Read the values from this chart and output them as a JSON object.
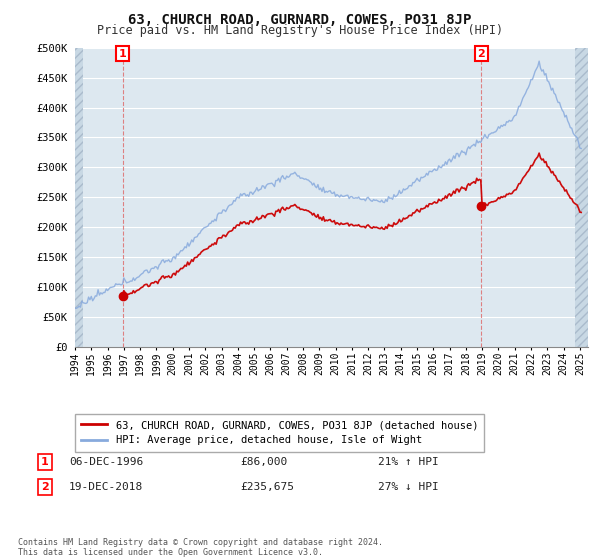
{
  "title": "63, CHURCH ROAD, GURNARD, COWES, PO31 8JP",
  "subtitle": "Price paid vs. HM Land Registry's House Price Index (HPI)",
  "ylim": [
    0,
    500000
  ],
  "yticks": [
    0,
    50000,
    100000,
    150000,
    200000,
    250000,
    300000,
    350000,
    400000,
    450000,
    500000
  ],
  "ytick_labels": [
    "£0",
    "£50K",
    "£100K",
    "£150K",
    "£200K",
    "£250K",
    "£300K",
    "£350K",
    "£400K",
    "£450K",
    "£500K"
  ],
  "xtick_years": [
    1994,
    1995,
    1996,
    1997,
    1998,
    1999,
    2000,
    2001,
    2002,
    2003,
    2004,
    2005,
    2006,
    2007,
    2008,
    2009,
    2010,
    2011,
    2012,
    2013,
    2014,
    2015,
    2016,
    2017,
    2018,
    2019,
    2020,
    2021,
    2022,
    2023,
    2024,
    2025
  ],
  "property_color": "#cc0000",
  "hpi_color": "#88aadd",
  "background_plot": "#dde8f0",
  "grid_color": "#ffffff",
  "vline_color": "#dd6666",
  "sale1_x": 1996.92,
  "sale1_y": 86000,
  "sale2_x": 2018.96,
  "sale2_y": 235675,
  "annotation1_text": "06-DEC-1996",
  "annotation1_price": "£86,000",
  "annotation1_hpi": "21% ↑ HPI",
  "annotation2_text": "19-DEC-2018",
  "annotation2_price": "£235,675",
  "annotation2_hpi": "27% ↓ HPI",
  "legend_property": "63, CHURCH ROAD, GURNARD, COWES, PO31 8JP (detached house)",
  "legend_hpi": "HPI: Average price, detached house, Isle of Wight",
  "footnote": "Contains HM Land Registry data © Crown copyright and database right 2024.\nThis data is licensed under the Open Government Licence v3.0."
}
